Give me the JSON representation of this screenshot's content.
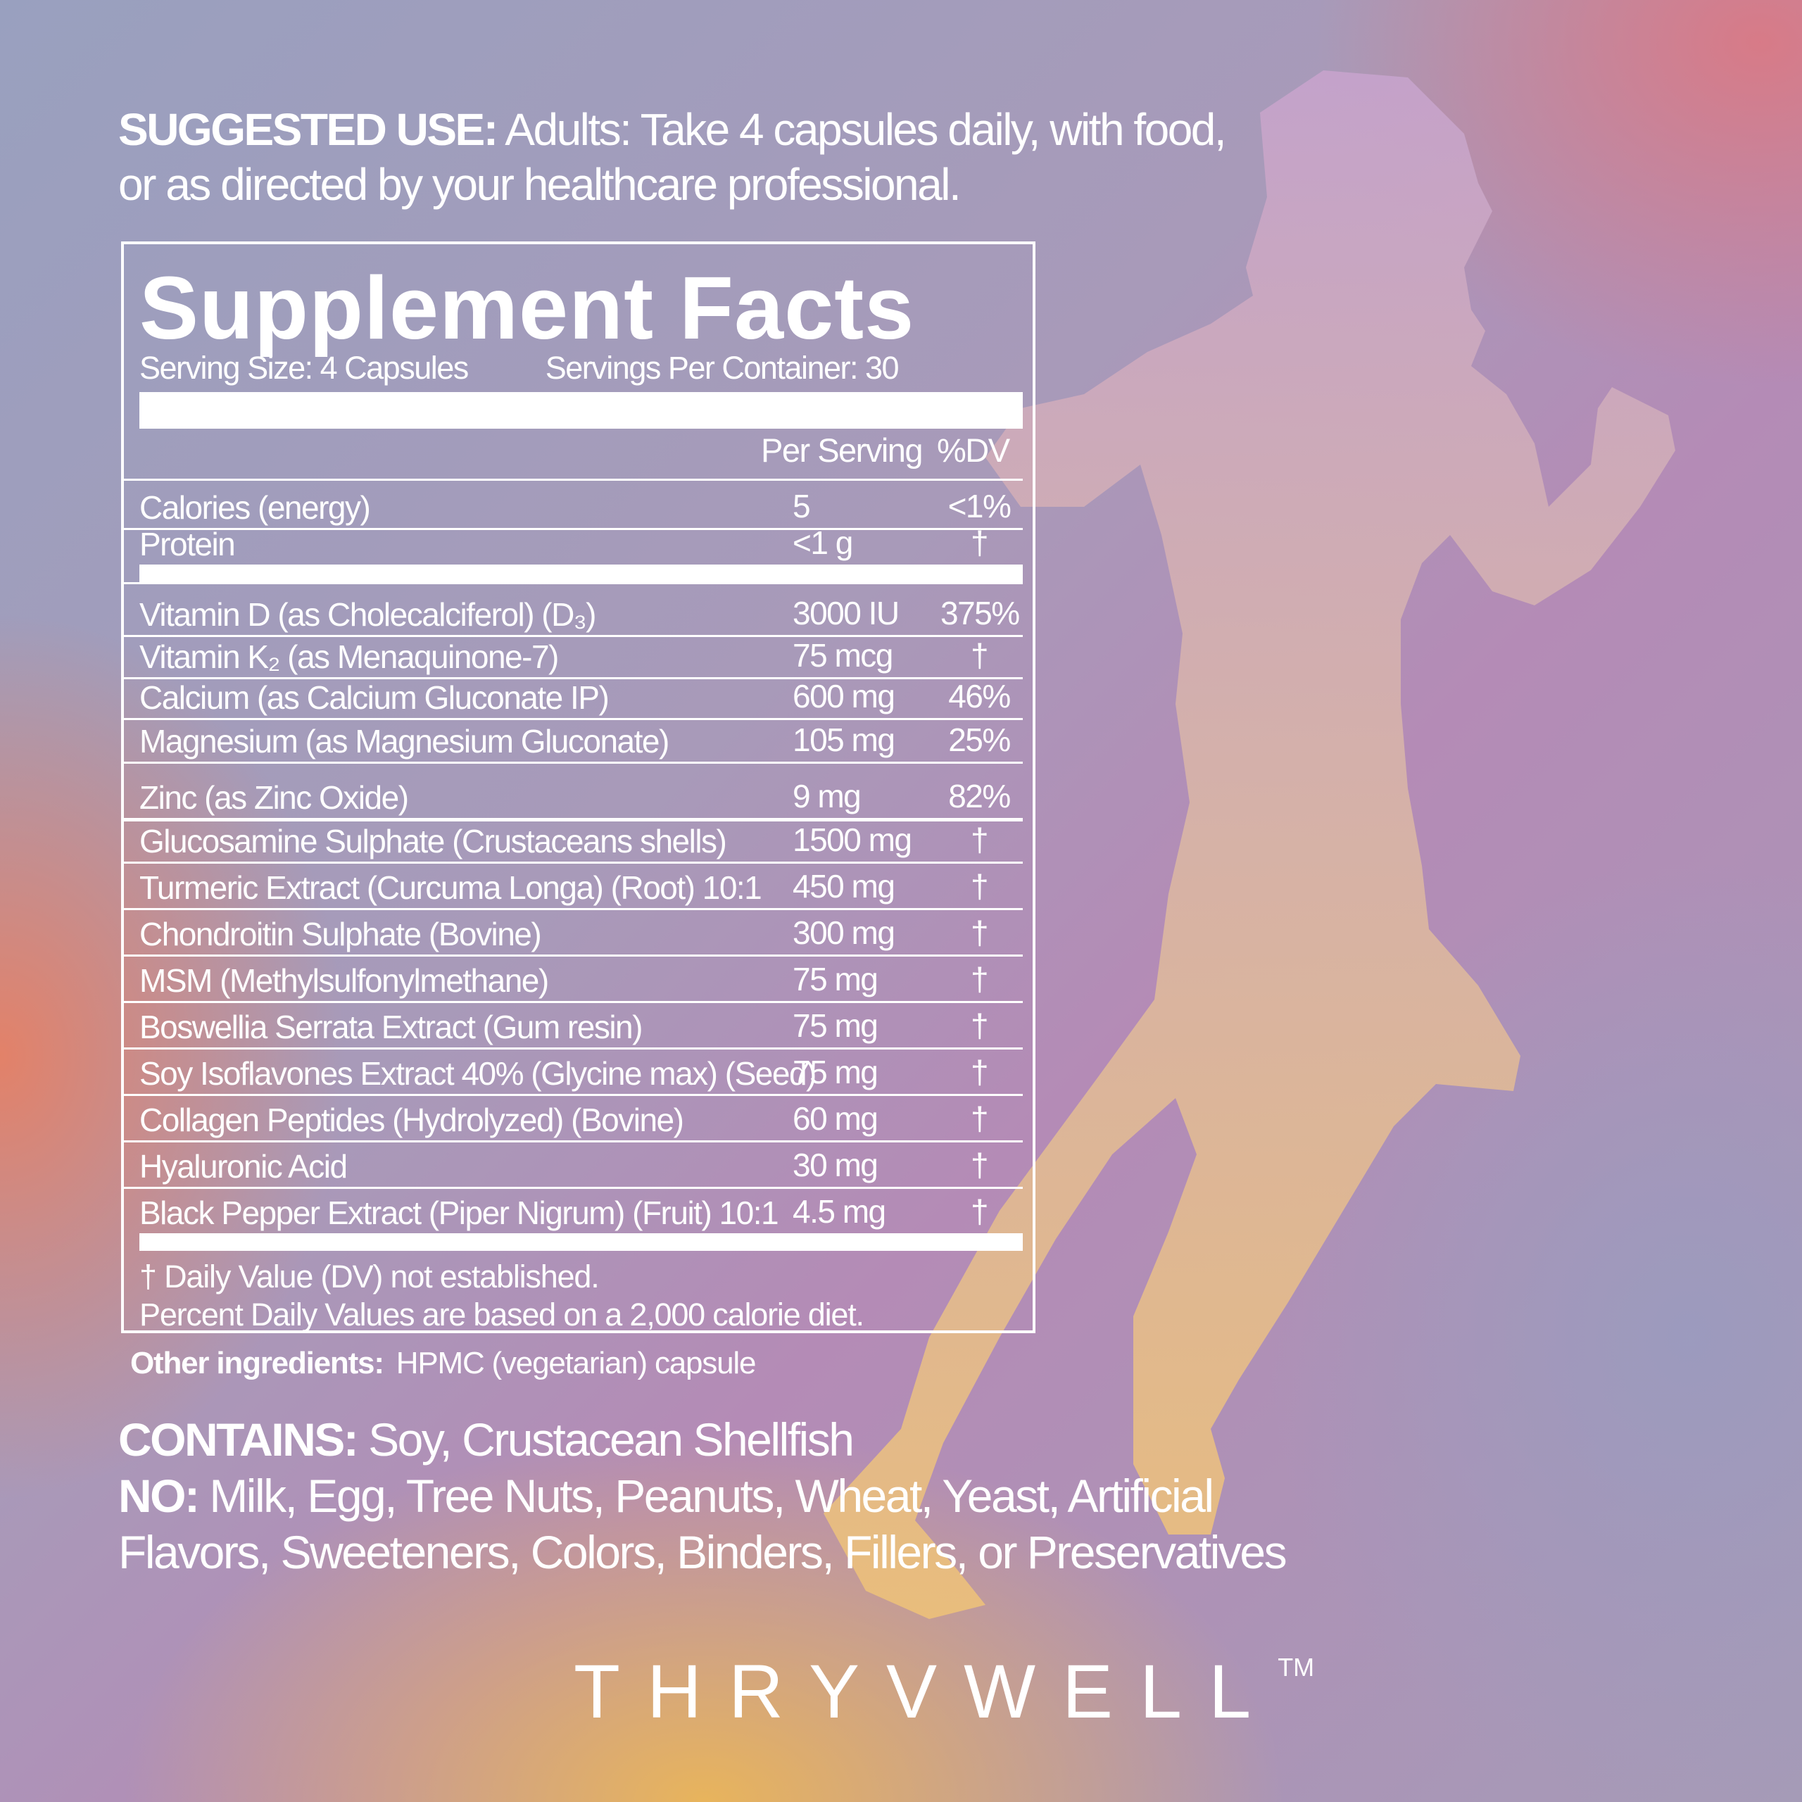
{
  "suggested_use": {
    "label": "SUGGESTED USE:",
    "line1": " Adults: Take 4 capsules daily, with food,",
    "line2": "or as directed by your healthcare professional."
  },
  "facts": {
    "title": "Supplement Facts",
    "serving_size": "Serving Size: 4 Capsules",
    "servings_per_container": "Servings Per Container: 30",
    "col_per_serving": "Per Serving",
    "col_dv": "%DV",
    "rows": [
      {
        "name": "Calories (energy)",
        "amount": "5",
        "dv": "<1%"
      },
      {
        "name": "Protein",
        "amount": "<1 g",
        "dv": "†"
      },
      {
        "name": "Vitamin D (as Cholecalciferol) (D₃)",
        "amount": "3000 IU",
        "dv": "375%"
      },
      {
        "name": "Vitamin K₂ (as Menaquinone-7)",
        "amount": "75 mcg",
        "dv": "†"
      },
      {
        "name": "Calcium (as Calcium Gluconate IP)",
        "amount": "600 mg",
        "dv": "46%"
      },
      {
        "name": "Magnesium (as Magnesium Gluconate)",
        "amount": "105 mg",
        "dv": "25%"
      },
      {
        "name": "Zinc (as Zinc Oxide)",
        "amount": "9 mg",
        "dv": "82%"
      },
      {
        "name": "Glucosamine Sulphate (Crustaceans shells)",
        "amount": "1500 mg",
        "dv": "†"
      },
      {
        "name": "Turmeric Extract (Curcuma Longa) (Root) 10:1",
        "amount": "450 mg",
        "dv": "†"
      },
      {
        "name": "Chondroitin Sulphate (Bovine)",
        "amount": "300 mg",
        "dv": "†"
      },
      {
        "name": "MSM (Methylsulfonylmethane)",
        "amount": "75 mg",
        "dv": "†"
      },
      {
        "name": "Boswellia Serrata Extract (Gum resin)",
        "amount": "75 mg",
        "dv": "†"
      },
      {
        "name": "Soy Isoflavones Extract 40% (Glycine max) (Seed)",
        "amount": "75 mg",
        "dv": "†"
      },
      {
        "name": "Collagen Peptides (Hydrolyzed) (Bovine)",
        "amount": "60 mg",
        "dv": "†"
      },
      {
        "name": "Hyaluronic Acid",
        "amount": "30 mg",
        "dv": "†"
      },
      {
        "name": "Black Pepper Extract (Piper Nigrum) (Fruit) 10:1",
        "amount": "4.5 mg",
        "dv": "†"
      }
    ],
    "footnote1": "† Daily Value (DV) not established.",
    "footnote2": "Percent Daily Values are based on a 2,000 calorie diet."
  },
  "other_ingredients": {
    "label": "Other ingredients:",
    "value": "HPMC (vegetarian) capsule"
  },
  "contains": {
    "label": "CONTAINS:",
    "value": " Soy,  Crustacean Shellfish"
  },
  "no": {
    "label": "NO:",
    "line1": "  Milk, Egg, Tree Nuts, Peanuts, Wheat, Yeast, Artificial",
    "line2": "Flavors, Sweeteners, Colors, Binders, Fillers, or Preservatives"
  },
  "brand": {
    "name": "THRYVWELL",
    "tm": "TM"
  },
  "colors": {
    "silhouette_top": "#c6a3cc",
    "silhouette_bottom": "#ecc07a",
    "text": "#ffffff"
  },
  "icons": {
    "figure": "running-woman-silhouette"
  }
}
